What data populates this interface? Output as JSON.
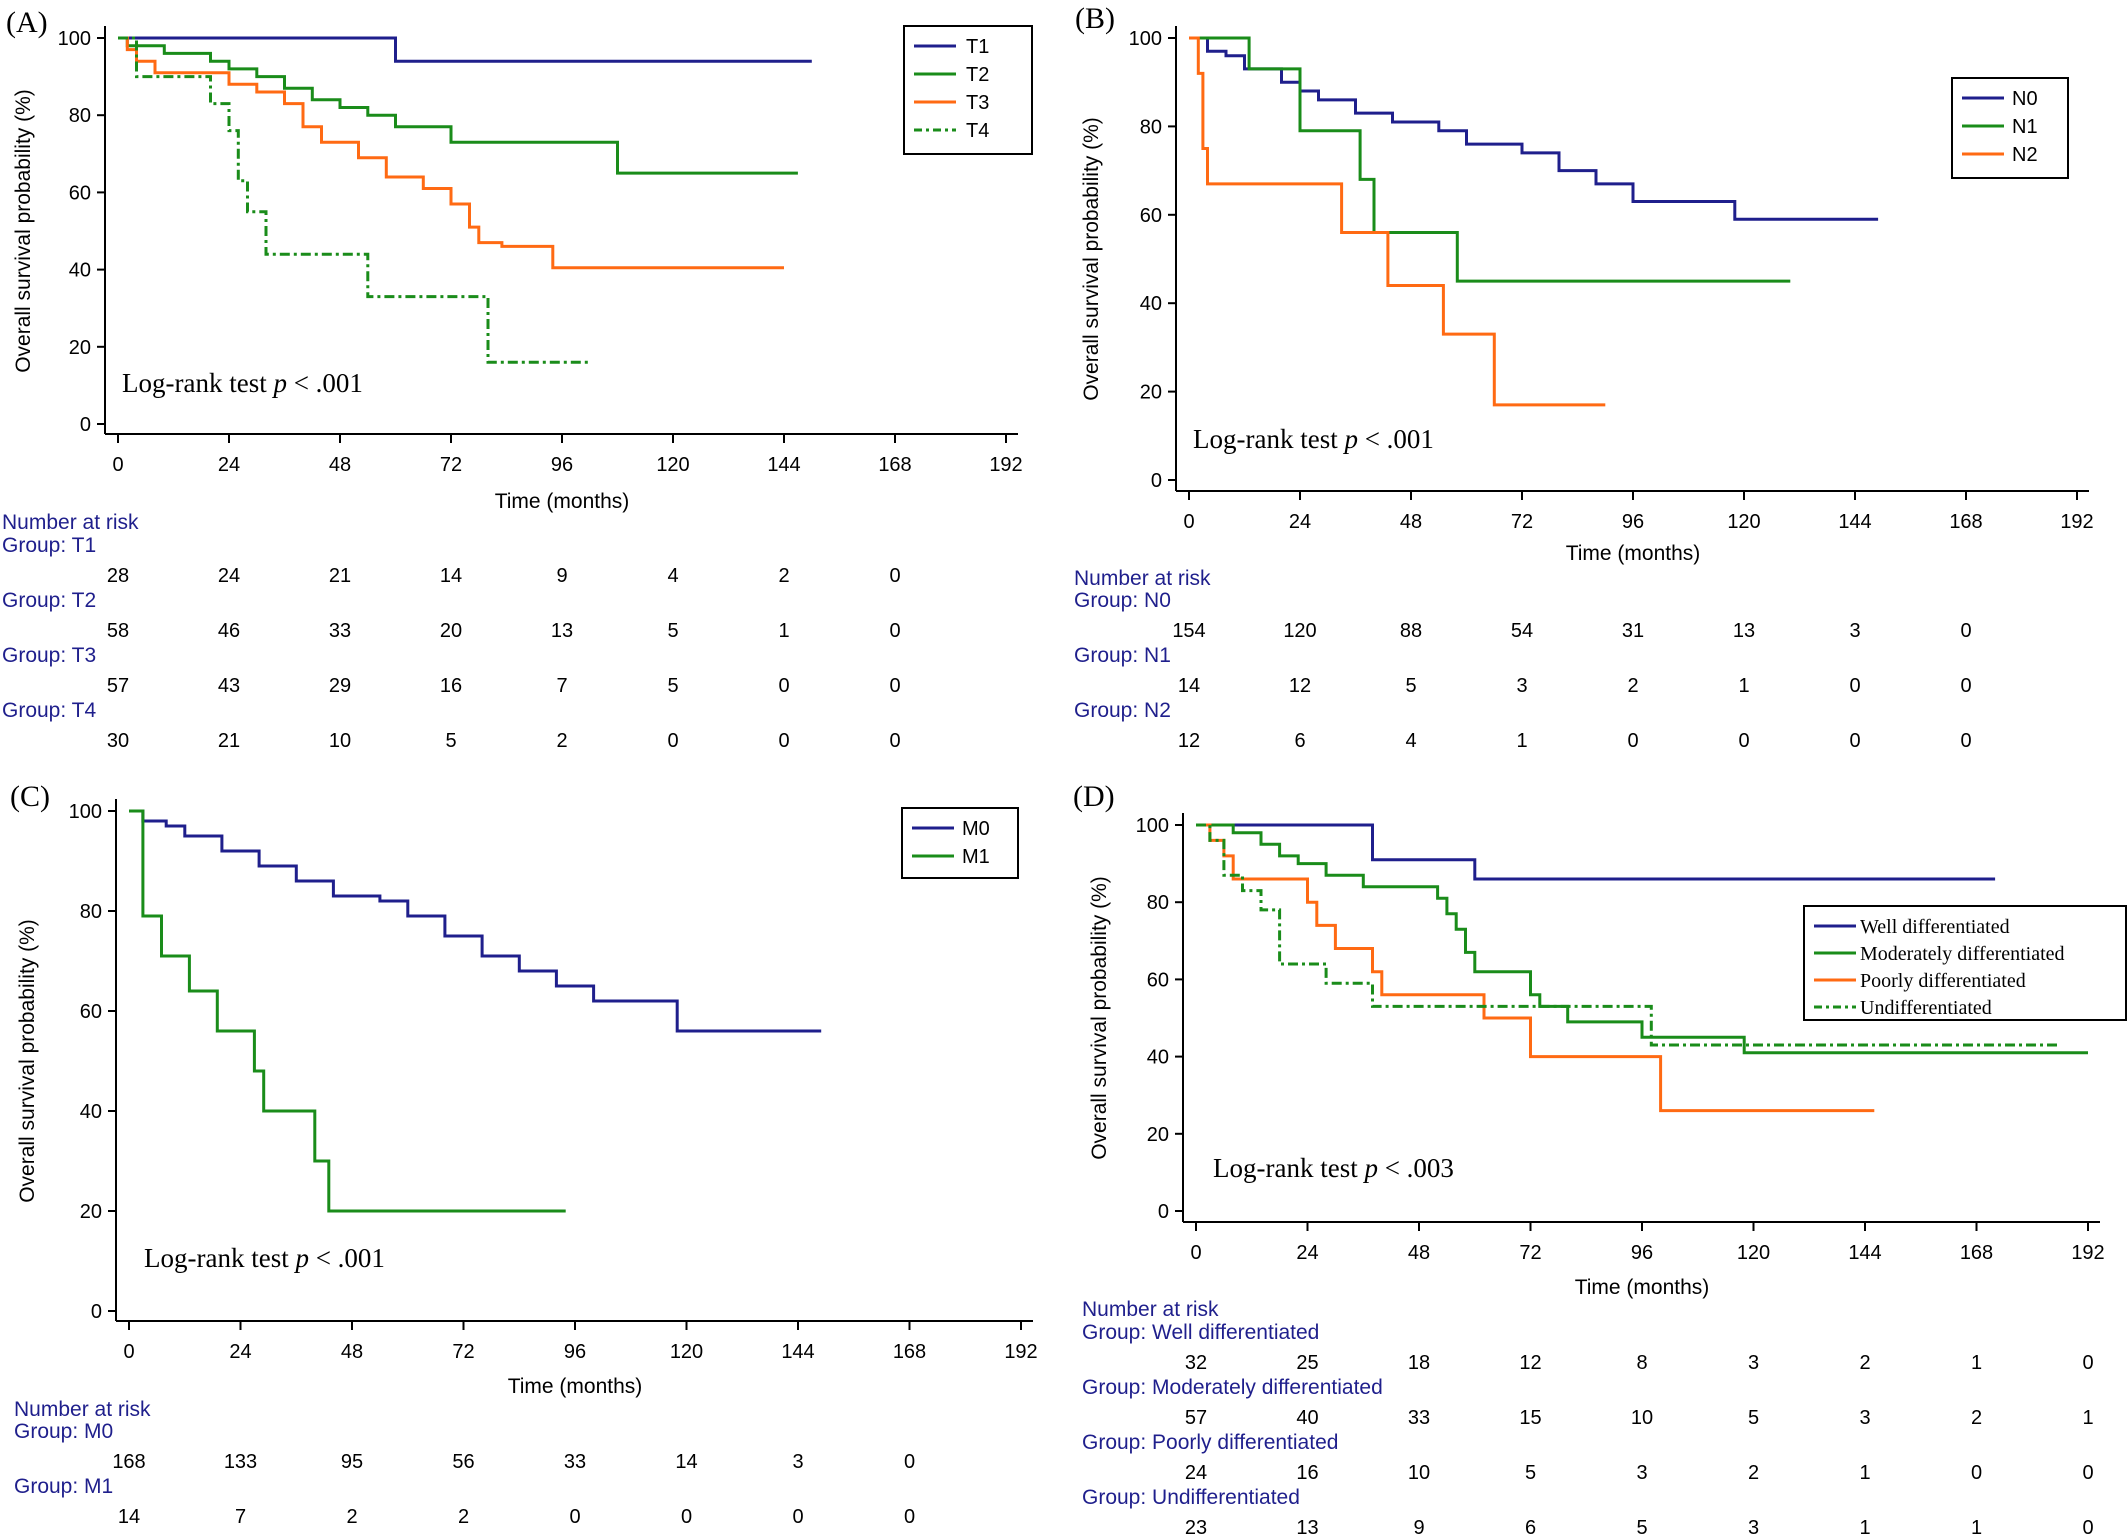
{
  "chart_data": [
    {
      "type": "line",
      "panel": "(A)",
      "title": "",
      "xlabel": "Time (months)",
      "ylabel": "Overall survival probability (%)",
      "xlim": [
        0,
        192
      ],
      "ylim": [
        0,
        100
      ],
      "xticks": [
        0,
        24,
        48,
        72,
        96,
        120,
        144,
        168,
        192
      ],
      "yticks": [
        0,
        20,
        40,
        60,
        80,
        100
      ],
      "legend_position": "top-right",
      "annotation": {
        "text": "Log-rank test ",
        "p": "p",
        "rest": " < .001"
      },
      "series": [
        {
          "name": "T1",
          "color": "#1f1f8c",
          "dash": "solid",
          "x": [
            0,
            60,
            60,
            150
          ],
          "y": [
            100,
            100,
            94,
            94
          ]
        },
        {
          "name": "T2",
          "color": "#1a8c1a",
          "dash": "solid",
          "x": [
            0,
            2,
            2,
            10,
            10,
            20,
            20,
            24,
            24,
            30,
            30,
            36,
            36,
            42,
            42,
            48,
            48,
            54,
            54,
            60,
            60,
            72,
            72,
            108,
            108,
            147
          ],
          "y": [
            100,
            100,
            98,
            98,
            96,
            96,
            94,
            94,
            92,
            92,
            90,
            90,
            87,
            87,
            84,
            84,
            82,
            82,
            80,
            80,
            77,
            77,
            73,
            73,
            65,
            65
          ]
        },
        {
          "name": "T3",
          "color": "#ff6a13",
          "dash": "solid",
          "x": [
            0,
            2,
            2,
            4,
            4,
            8,
            8,
            24,
            24,
            30,
            30,
            36,
            36,
            40,
            40,
            44,
            44,
            52,
            52,
            58,
            58,
            66,
            66,
            72,
            72,
            76,
            76,
            78,
            78,
            83,
            83,
            94,
            94,
            144
          ],
          "y": [
            100,
            100,
            97,
            97,
            94,
            94,
            91,
            91,
            88,
            88,
            86,
            86,
            83,
            83,
            77,
            77,
            73,
            73,
            69,
            69,
            64,
            64,
            61,
            61,
            57,
            57,
            51,
            51,
            47,
            47,
            46,
            46,
            40.5,
            40.5
          ]
        },
        {
          "name": "T4",
          "color": "#1a8c1a",
          "dash": "dashdot",
          "x": [
            0,
            4,
            4,
            20,
            20,
            24,
            24,
            26,
            26,
            28,
            28,
            32,
            32,
            54,
            54,
            80,
            80,
            99,
            99,
            102
          ],
          "y": [
            100,
            100,
            90,
            90,
            83,
            83,
            76,
            76,
            63,
            63,
            55,
            55,
            44,
            44,
            33,
            33,
            16,
            16,
            16,
            16
          ]
        }
      ],
      "risk_table": {
        "header": "Number at risk",
        "times": [
          0,
          24,
          48,
          72,
          96,
          120,
          144,
          168
        ],
        "groups": [
          {
            "label": "Group: T1",
            "values": [
              "28",
              "24",
              "21",
              "14",
              "9",
              "4",
              "2",
              "0"
            ]
          },
          {
            "label": "Group: T2",
            "values": [
              "58",
              "46",
              "33",
              "20",
              "13",
              "5",
              "1",
              "0"
            ]
          },
          {
            "label": "Group: T3",
            "values": [
              "57",
              "43",
              "29",
              "16",
              "7",
              "5",
              "0",
              "0"
            ]
          },
          {
            "label": "Group: T4",
            "values": [
              "30",
              "21",
              "10",
              "5",
              "2",
              "0",
              "0",
              "0"
            ]
          }
        ]
      }
    },
    {
      "type": "line",
      "panel": "(B)",
      "title": "",
      "xlabel": "Time (months)",
      "ylabel": "Overall survival probability (%)",
      "xlim": [
        0,
        192
      ],
      "ylim": [
        0,
        100
      ],
      "xticks": [
        0,
        24,
        48,
        72,
        96,
        120,
        144,
        168,
        192
      ],
      "yticks": [
        0,
        20,
        40,
        60,
        80,
        100
      ],
      "legend_position": "top-right",
      "annotation": {
        "text": "Log-rank test ",
        "p": "p",
        "rest": " < .001"
      },
      "series": [
        {
          "name": "N0",
          "color": "#1f1f8c",
          "dash": "solid",
          "x": [
            0,
            4,
            4,
            8,
            8,
            12,
            12,
            20,
            20,
            24,
            24,
            28,
            28,
            36,
            36,
            44,
            44,
            54,
            54,
            60,
            60,
            72,
            72,
            80,
            80,
            88,
            88,
            96,
            96,
            118,
            118,
            149
          ],
          "y": [
            100,
            100,
            97,
            97,
            96,
            96,
            93,
            93,
            90,
            90,
            88,
            88,
            86,
            86,
            83,
            83,
            81,
            81,
            79,
            79,
            76,
            76,
            74,
            74,
            70,
            70,
            67,
            67,
            63,
            63,
            59,
            59
          ]
        },
        {
          "name": "N1",
          "color": "#1a8c1a",
          "dash": "solid",
          "x": [
            0,
            13,
            13,
            24,
            24,
            37,
            37,
            40,
            40,
            58,
            58,
            130
          ],
          "y": [
            100,
            100,
            93,
            93,
            79,
            79,
            68,
            68,
            56,
            56,
            45,
            45
          ]
        },
        {
          "name": "N2",
          "color": "#ff6a13",
          "dash": "solid",
          "x": [
            0,
            2,
            2,
            3,
            3,
            4,
            4,
            33,
            33,
            43,
            43,
            55,
            55,
            66,
            66,
            90
          ],
          "y": [
            100,
            100,
            92,
            92,
            75,
            75,
            67,
            67,
            56,
            56,
            44,
            44,
            33,
            33,
            17,
            17
          ]
        }
      ],
      "risk_table": {
        "header": "Number at risk",
        "times": [
          0,
          24,
          48,
          72,
          96,
          120,
          144,
          168
        ],
        "groups": [
          {
            "label": "Group: N0",
            "values": [
              "154",
              "120",
              "88",
              "54",
              "31",
              "13",
              "3",
              "0"
            ]
          },
          {
            "label": "Group: N1",
            "values": [
              "14",
              "12",
              "5",
              "3",
              "2",
              "1",
              "0",
              "0"
            ]
          },
          {
            "label": "Group: N2",
            "values": [
              "12",
              "6",
              "4",
              "1",
              "0",
              "0",
              "0",
              "0"
            ]
          }
        ]
      }
    },
    {
      "type": "line",
      "panel": "(C)",
      "title": "",
      "xlabel": "Time (months)",
      "ylabel": "Overall survival probability (%)",
      "xlim": [
        0,
        192
      ],
      "ylim": [
        0,
        100
      ],
      "xticks": [
        0,
        24,
        48,
        72,
        96,
        120,
        144,
        168,
        192
      ],
      "yticks": [
        0,
        20,
        40,
        60,
        80,
        100
      ],
      "legend_position": "top-right",
      "annotation": {
        "text": "Log-rank test ",
        "p": "p",
        "rest": " < .001"
      },
      "series": [
        {
          "name": "M0",
          "color": "#1f1f8c",
          "dash": "solid",
          "x": [
            0,
            3,
            3,
            8,
            8,
            12,
            12,
            20,
            20,
            28,
            28,
            36,
            36,
            44,
            44,
            54,
            54,
            60,
            60,
            68,
            68,
            76,
            76,
            84,
            84,
            92,
            92,
            100,
            100,
            118,
            118,
            149
          ],
          "y": [
            100,
            100,
            98,
            98,
            97,
            97,
            95,
            95,
            92,
            92,
            89,
            89,
            86,
            86,
            83,
            83,
            82,
            82,
            79,
            79,
            75,
            75,
            71,
            71,
            68,
            68,
            65,
            65,
            62,
            62,
            56,
            56
          ]
        },
        {
          "name": "M1",
          "color": "#1a8c1a",
          "dash": "solid",
          "x": [
            0,
            3,
            3,
            7,
            7,
            13,
            13,
            19,
            19,
            27,
            27,
            29,
            29,
            40,
            40,
            43,
            43,
            94
          ],
          "y": [
            100,
            100,
            79,
            79,
            71,
            71,
            64,
            64,
            56,
            56,
            48,
            48,
            40,
            40,
            30,
            30,
            20,
            20
          ]
        }
      ],
      "risk_table": {
        "header": "Number at risk",
        "times": [
          0,
          24,
          48,
          72,
          96,
          120,
          144,
          168
        ],
        "groups": [
          {
            "label": "Group: M0",
            "values": [
              "168",
              "133",
              "95",
              "56",
              "33",
              "14",
              "3",
              "0"
            ]
          },
          {
            "label": "Group: M1",
            "values": [
              "14",
              "7",
              "2",
              "2",
              "0",
              "0",
              "0",
              "0"
            ]
          }
        ]
      }
    },
    {
      "type": "line",
      "panel": "(D)",
      "title": "",
      "xlabel": "Time (months)",
      "ylabel": "Overall survival probability (%)",
      "xlim": [
        0,
        192
      ],
      "ylim": [
        0,
        100
      ],
      "xticks": [
        0,
        24,
        48,
        72,
        96,
        120,
        144,
        168,
        192
      ],
      "yticks": [
        0,
        20,
        40,
        60,
        80,
        100
      ],
      "legend_position": "right",
      "annotation": {
        "text": "Log-rank test ",
        "p": "p",
        "rest": " < .003"
      },
      "series": [
        {
          "name": "Well differentiated",
          "color": "#1f1f8c",
          "dash": "solid",
          "x": [
            0,
            38,
            38,
            60,
            60,
            172
          ],
          "y": [
            100,
            100,
            91,
            91,
            86,
            86
          ]
        },
        {
          "name": "Moderately differentiated",
          "color": "#1a8c1a",
          "dash": "solid",
          "x": [
            0,
            8,
            8,
            14,
            14,
            18,
            18,
            22,
            22,
            28,
            28,
            36,
            36,
            52,
            52,
            54,
            54,
            56,
            56,
            58,
            58,
            60,
            60,
            72,
            72,
            74,
            74,
            80,
            80,
            96,
            96,
            118,
            118,
            192
          ],
          "y": [
            100,
            100,
            98,
            98,
            95,
            95,
            92,
            92,
            90,
            90,
            87,
            87,
            84,
            84,
            81,
            81,
            77,
            77,
            73,
            73,
            67,
            67,
            62,
            62,
            56,
            56,
            53,
            53,
            49,
            49,
            45,
            45,
            41,
            41
          ]
        },
        {
          "name": "Poorly differentiated",
          "color": "#ff6a13",
          "dash": "solid",
          "x": [
            0,
            3,
            3,
            6,
            6,
            8,
            8,
            24,
            24,
            26,
            26,
            30,
            30,
            38,
            38,
            40,
            40,
            55,
            55,
            62,
            62,
            67,
            67,
            72,
            72,
            100,
            100,
            146
          ],
          "y": [
            100,
            100,
            96,
            96,
            92,
            92,
            86,
            86,
            80,
            80,
            74,
            74,
            68,
            68,
            62,
            62,
            56,
            56,
            56,
            56,
            50,
            50,
            50,
            50,
            40,
            40,
            26,
            26
          ]
        },
        {
          "name": "Undifferentiated",
          "color": "#1a8c1a",
          "dash": "dashdot",
          "x": [
            0,
            3,
            3,
            6,
            6,
            10,
            10,
            14,
            14,
            18,
            18,
            28,
            28,
            38,
            38,
            44,
            44,
            98,
            98,
            112,
            112,
            186
          ],
          "y": [
            100,
            100,
            96,
            96,
            87,
            87,
            83,
            83,
            78,
            78,
            64,
            64,
            59,
            59,
            53,
            53,
            53,
            53,
            43,
            43,
            43,
            43
          ]
        }
      ],
      "risk_table": {
        "header": "Number at risk",
        "times": [
          0,
          24,
          48,
          72,
          96,
          120,
          144,
          168,
          192
        ],
        "groups": [
          {
            "label": "Group: Well differentiated",
            "values": [
              "32",
              "25",
              "18",
              "12",
              "8",
              "3",
              "2",
              "1",
              "0"
            ]
          },
          {
            "label": "Group: Moderately differentiated",
            "values": [
              "57",
              "40",
              "33",
              "15",
              "10",
              "5",
              "3",
              "2",
              "1"
            ]
          },
          {
            "label": "Group: Poorly differentiated",
            "values": [
              "24",
              "16",
              "10",
              "5",
              "3",
              "2",
              "1",
              "0",
              "0"
            ]
          },
          {
            "label": "Group: Undifferentiated",
            "values": [
              "23",
              "13",
              "9",
              "6",
              "5",
              "3",
              "1",
              "1",
              "0"
            ]
          }
        ]
      }
    }
  ]
}
